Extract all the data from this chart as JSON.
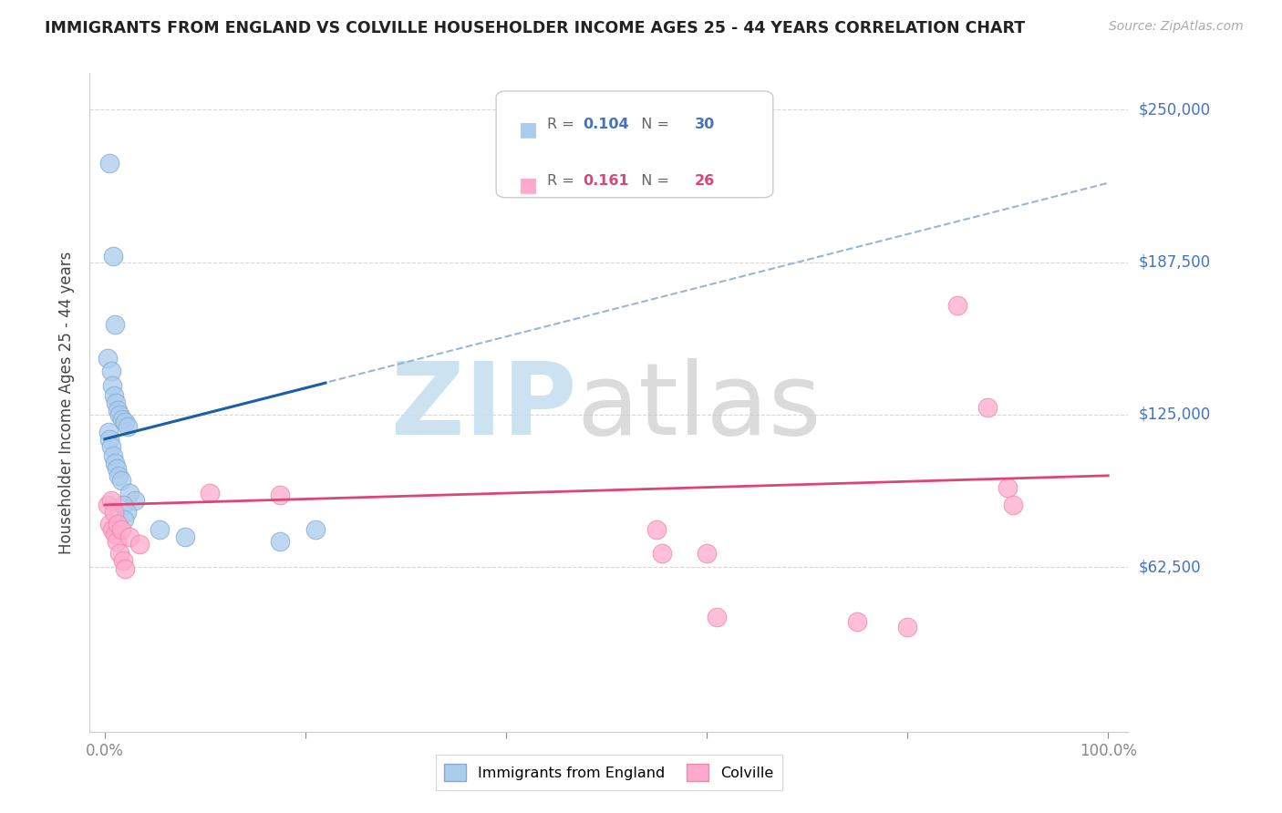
{
  "title": "IMMIGRANTS FROM ENGLAND VS COLVILLE HOUSEHOLDER INCOME AGES 25 - 44 YEARS CORRELATION CHART",
  "source": "Source: ZipAtlas.com",
  "ylabel": "Householder Income Ages 25 - 44 years",
  "legend_blue_r": "0.104",
  "legend_blue_n": "30",
  "legend_pink_r": "0.161",
  "legend_pink_n": "26",
  "blue_color": "#aaccee",
  "blue_edge_color": "#88aacc",
  "pink_color": "#ffaacc",
  "pink_edge_color": "#ee88aa",
  "blue_line_color": "#1a5fa8",
  "blue_dash_color": "#88aacc",
  "pink_line_color": "#dd4477",
  "watermark_zip_color": "#c8dff0",
  "watermark_atlas_color": "#cccccc",
  "grid_color": "#cccccc",
  "right_label_color": "#4472c4",
  "background_color": "#ffffff",
  "blue_x": [
    0.5,
    0.8,
    1.0,
    0.3,
    0.6,
    0.7,
    0.9,
    1.1,
    1.3,
    1.5,
    1.7,
    2.0,
    2.3,
    0.4,
    0.5,
    0.6,
    0.8,
    1.0,
    1.2,
    1.4,
    1.6,
    2.5,
    3.0,
    1.8,
    2.2,
    1.9,
    5.5,
    8.0,
    17.5,
    21.0
  ],
  "blue_y": [
    228000,
    190000,
    162000,
    148000,
    143000,
    137000,
    133000,
    130000,
    127000,
    125000,
    123000,
    122000,
    120000,
    118000,
    115000,
    112000,
    108000,
    105000,
    103000,
    100000,
    98000,
    93000,
    90000,
    88000,
    85000,
    82000,
    78000,
    75000,
    73000,
    78000
  ],
  "pink_x": [
    0.3,
    0.5,
    0.7,
    1.0,
    1.2,
    1.5,
    1.8,
    2.0,
    0.6,
    0.9,
    1.3,
    1.6,
    2.5,
    3.5,
    10.5,
    17.5,
    55.0,
    60.0,
    75.0,
    80.0,
    85.0,
    88.0,
    90.0,
    55.5,
    61.0,
    90.5
  ],
  "pink_y": [
    88000,
    80000,
    78000,
    76000,
    73000,
    68000,
    65000,
    62000,
    90000,
    85000,
    80000,
    78000,
    75000,
    72000,
    93000,
    92000,
    78000,
    68000,
    40000,
    38000,
    170000,
    128000,
    95000,
    68000,
    42000,
    88000
  ],
  "ylim_max": 265000,
  "xlim_max": 100,
  "ytick_vals": [
    0,
    62500,
    125000,
    187500,
    250000
  ],
  "ytick_right_labels": [
    "$62,500",
    "$125,000",
    "$187,500",
    "$250,000"
  ],
  "ytick_right_vals": [
    62500,
    125000,
    187500,
    250000
  ]
}
